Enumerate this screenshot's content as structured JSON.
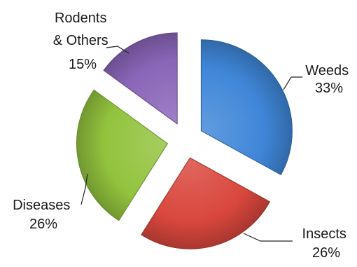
{
  "chart_data": {
    "type": "pie",
    "title": "",
    "exploded": true,
    "style": "3d-shaded",
    "slices": [
      {
        "name": "Weeds",
        "value": 33,
        "label": "33%",
        "color": "#3f86d8"
      },
      {
        "name": "Insects",
        "value": 26,
        "label": "26%",
        "color": "#d9473d"
      },
      {
        "name": "Diseases",
        "value": 26,
        "label": "26%",
        "color": "#92c33d"
      },
      {
        "name": "Rodents & Others",
        "value": 15,
        "label": "15%",
        "color": "#8a65b8"
      }
    ]
  }
}
